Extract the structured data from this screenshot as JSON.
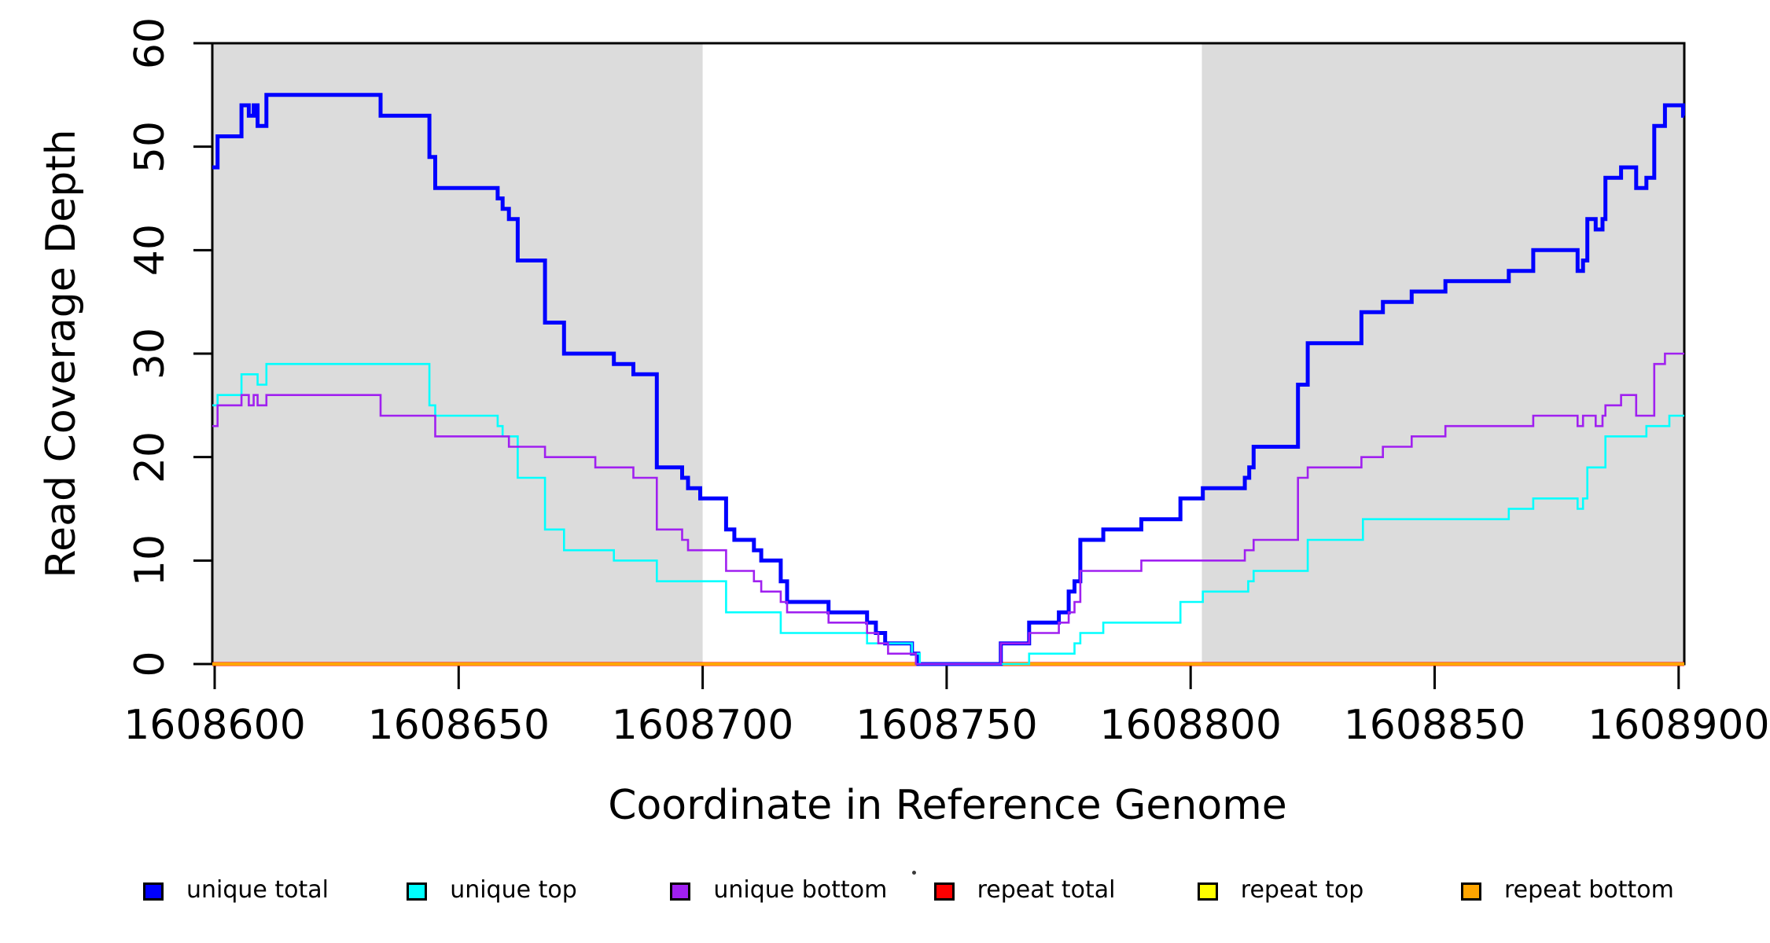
{
  "chart_data": {
    "type": "line",
    "step": "after",
    "title": "",
    "xlabel": "Coordinate in Reference Genome",
    "ylabel": "Read Coverage Depth",
    "xlim": [
      1608599.5,
      1608901.2
    ],
    "ylim": [
      0,
      60
    ],
    "grid": false,
    "x_ticks": [
      1608600,
      1608650,
      1608700,
      1608750,
      1608800,
      1608850,
      1608900
    ],
    "y_ticks": [
      0,
      10,
      20,
      30,
      40,
      50,
      60
    ],
    "shaded_regions": [
      {
        "from": 1608599.5,
        "to": 1608700,
        "color": "#DCDCDC"
      },
      {
        "from": 1608802.3,
        "to": 1608901.2,
        "color": "#DCDCDC"
      }
    ],
    "legend_position": "bottom",
    "legend": [
      {
        "label": "unique total",
        "color": "#0000FF"
      },
      {
        "label": "unique top",
        "color": "#00FFFF"
      },
      {
        "label": "unique bottom",
        "color": "#A020F0"
      },
      {
        "label": "repeat total",
        "color": "#FF0000"
      },
      {
        "label": "repeat top",
        "color": "#FFFF00"
      },
      {
        "label": "repeat bottom",
        "color": "#FFA500"
      }
    ],
    "series": [
      {
        "name": "repeat total",
        "color": "#FF0000",
        "width": 5,
        "points": [
          [
            1608599.5,
            0
          ],
          [
            1608901.2,
            0
          ]
        ]
      },
      {
        "name": "repeat top",
        "color": "#FFFF00",
        "width": 2.6,
        "points": [
          [
            1608599.5,
            0
          ],
          [
            1608901.2,
            0
          ]
        ]
      },
      {
        "name": "repeat bottom",
        "color": "#FFA500",
        "width": 4,
        "points": [
          [
            1608599.5,
            0
          ],
          [
            1608901.2,
            0
          ]
        ]
      },
      {
        "name": "unique total",
        "color": "#0000FF",
        "width": 5,
        "points": [
          [
            1608599.5,
            48
          ],
          [
            1608600.6,
            51
          ],
          [
            1608605.5,
            54
          ],
          [
            1608607,
            53
          ],
          [
            1608608,
            54
          ],
          [
            1608608.8,
            52
          ],
          [
            1608610.6,
            55
          ],
          [
            1608634,
            53
          ],
          [
            1608644,
            49
          ],
          [
            1608645.2,
            46
          ],
          [
            1608658,
            45
          ],
          [
            1608659,
            44
          ],
          [
            1608660.3,
            43
          ],
          [
            1608662.1,
            39
          ],
          [
            1608667.7,
            33
          ],
          [
            1608671.6,
            30
          ],
          [
            1608681.8,
            29
          ],
          [
            1608685.8,
            28
          ],
          [
            1608690.6,
            19
          ],
          [
            1608695.8,
            18
          ],
          [
            1608697,
            17
          ],
          [
            1608699.5,
            16
          ],
          [
            1608704.8,
            13
          ],
          [
            1608706.5,
            12
          ],
          [
            1608710.5,
            11
          ],
          [
            1608712,
            10
          ],
          [
            1608716,
            8
          ],
          [
            1608717.3,
            6
          ],
          [
            1608725.8,
            5
          ],
          [
            1608733.7,
            4
          ],
          [
            1608735.5,
            3
          ],
          [
            1608737.4,
            2
          ],
          [
            1608742.9,
            1
          ],
          [
            1608744.2,
            0
          ],
          [
            1608761.1,
            2
          ],
          [
            1608766.9,
            4
          ],
          [
            1608773,
            5
          ],
          [
            1608775,
            7
          ],
          [
            1608776.2,
            8
          ],
          [
            1608777.4,
            12
          ],
          [
            1608782.1,
            13
          ],
          [
            1608789.9,
            14
          ],
          [
            1608797.9,
            16
          ],
          [
            1608802.5,
            17
          ],
          [
            1608811.1,
            18
          ],
          [
            1608812,
            19
          ],
          [
            1608812.9,
            21
          ],
          [
            1608822,
            27
          ],
          [
            1608824,
            31
          ],
          [
            1608835,
            34
          ],
          [
            1608839.4,
            35
          ],
          [
            1608845.3,
            36
          ],
          [
            1608852.2,
            37
          ],
          [
            1608865.2,
            38
          ],
          [
            1608870.2,
            40
          ],
          [
            1608879.3,
            38
          ],
          [
            1608880.4,
            39
          ],
          [
            1608881.3,
            43
          ],
          [
            1608883,
            42
          ],
          [
            1608884.4,
            43
          ],
          [
            1608885,
            47
          ],
          [
            1608888.2,
            48
          ],
          [
            1608891.3,
            46
          ],
          [
            1608893.4,
            47
          ],
          [
            1608895,
            52
          ],
          [
            1608897.2,
            54
          ],
          [
            1608900.9,
            53
          ]
        ]
      },
      {
        "name": "unique top",
        "color": "#00FFFF",
        "width": 2.6,
        "points": [
          [
            1608599.5,
            25
          ],
          [
            1608600.6,
            26
          ],
          [
            1608605.5,
            28
          ],
          [
            1608608.8,
            27
          ],
          [
            1608610.6,
            29
          ],
          [
            1608644,
            25
          ],
          [
            1608645.2,
            24
          ],
          [
            1608658,
            23
          ],
          [
            1608659,
            22
          ],
          [
            1608662.1,
            18
          ],
          [
            1608667.7,
            13
          ],
          [
            1608671.6,
            11
          ],
          [
            1608681.8,
            10
          ],
          [
            1608690.6,
            8
          ],
          [
            1608704.8,
            5
          ],
          [
            1608716,
            3
          ],
          [
            1608733.7,
            2
          ],
          [
            1608742.9,
            1
          ],
          [
            1608744.5,
            0
          ],
          [
            1608766.9,
            1
          ],
          [
            1608776.2,
            2
          ],
          [
            1608777.4,
            3
          ],
          [
            1608782.1,
            4
          ],
          [
            1608797.9,
            6
          ],
          [
            1608802.5,
            7
          ],
          [
            1608811.8,
            8
          ],
          [
            1608812.9,
            9
          ],
          [
            1608824,
            12
          ],
          [
            1608835.3,
            14
          ],
          [
            1608865.2,
            15
          ],
          [
            1608870.2,
            16
          ],
          [
            1608879.3,
            15
          ],
          [
            1608880.4,
            16
          ],
          [
            1608881.3,
            19
          ],
          [
            1608885,
            22
          ],
          [
            1608893.4,
            23
          ],
          [
            1608898.1,
            24
          ]
        ]
      },
      {
        "name": "unique bottom",
        "color": "#A020F0",
        "width": 2.6,
        "points": [
          [
            1608599.5,
            23
          ],
          [
            1608600.6,
            25
          ],
          [
            1608605.5,
            26
          ],
          [
            1608607,
            25
          ],
          [
            1608608,
            26
          ],
          [
            1608608.8,
            25
          ],
          [
            1608610.6,
            26
          ],
          [
            1608634,
            24
          ],
          [
            1608645.2,
            22
          ],
          [
            1608660.3,
            21
          ],
          [
            1608667.7,
            20
          ],
          [
            1608678,
            19
          ],
          [
            1608685.8,
            18
          ],
          [
            1608690.6,
            13
          ],
          [
            1608695.8,
            12
          ],
          [
            1608697,
            11
          ],
          [
            1608704.8,
            9
          ],
          [
            1608710.5,
            8
          ],
          [
            1608712,
            7
          ],
          [
            1608716,
            6
          ],
          [
            1608717.3,
            5
          ],
          [
            1608725.8,
            4
          ],
          [
            1608733.7,
            3
          ],
          [
            1608736,
            2
          ],
          [
            1608738,
            1
          ],
          [
            1608743.7,
            0
          ],
          [
            1608761.1,
            2
          ],
          [
            1608766.9,
            3
          ],
          [
            1608773,
            4
          ],
          [
            1608775,
            5
          ],
          [
            1608776.2,
            6
          ],
          [
            1608777.4,
            9
          ],
          [
            1608789.9,
            10
          ],
          [
            1608811.1,
            11
          ],
          [
            1608812.9,
            12
          ],
          [
            1608822,
            18
          ],
          [
            1608824,
            19
          ],
          [
            1608835,
            20
          ],
          [
            1608839.4,
            21
          ],
          [
            1608845.3,
            22
          ],
          [
            1608852.2,
            23
          ],
          [
            1608870.2,
            24
          ],
          [
            1608879.3,
            23
          ],
          [
            1608880.4,
            24
          ],
          [
            1608883,
            23
          ],
          [
            1608884.4,
            24
          ],
          [
            1608885,
            25
          ],
          [
            1608888.2,
            26
          ],
          [
            1608891.3,
            24
          ],
          [
            1608895,
            29
          ],
          [
            1608897.2,
            30
          ]
        ]
      }
    ]
  }
}
